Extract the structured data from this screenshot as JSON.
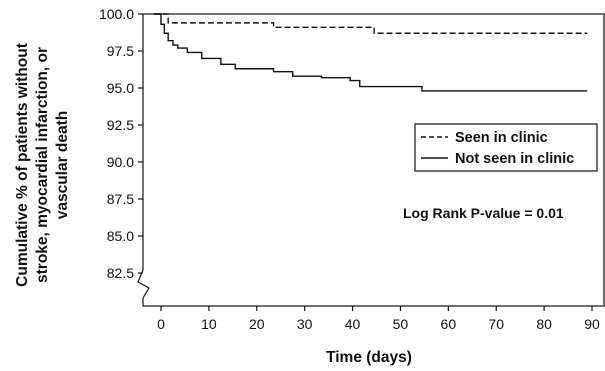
{
  "chart_data": {
    "type": "line",
    "title": "",
    "xlabel": "Time (days)",
    "ylabel_lines": [
      "Cumulative % of patients without",
      "stroke, myocardial infarction, or",
      "vascular death"
    ],
    "xlim": [
      -5,
      90
    ],
    "ylim": [
      80,
      100
    ],
    "x_ticks": [
      0,
      10,
      20,
      30,
      40,
      50,
      60,
      70,
      80,
      90
    ],
    "y_ticks": [
      82.5,
      85.0,
      87.5,
      90.0,
      92.5,
      95.0,
      97.5,
      100.0
    ],
    "y_tick_labels": [
      "82.5",
      "85.0",
      "87.5",
      "90.0",
      "92.5",
      "95.0",
      "97.5",
      "100.0"
    ],
    "y_axis_break": true,
    "legend_position": "middle-right",
    "annotation": "Log Rank P-value = 0.01",
    "series": [
      {
        "name": "Seen in clinic",
        "line_style": "dashed",
        "color": "#111111",
        "step_x": [
          -1.5,
          1.5,
          23.5,
          44.5,
          89
        ],
        "step_y": [
          100.0,
          99.4,
          99.1,
          98.7,
          98.7
        ]
      },
      {
        "name": "Not seen in clinic",
        "line_style": "solid",
        "color": "#111111",
        "step_x": [
          -1.5,
          0,
          0.7,
          1.5,
          2.5,
          3.5,
          5.5,
          8.5,
          12.5,
          15.5,
          23.5,
          27.5,
          33.5,
          39.5,
          41.5,
          54.5,
          89
        ],
        "step_y": [
          100.0,
          99.3,
          98.7,
          98.2,
          97.9,
          97.7,
          97.4,
          97.0,
          96.6,
          96.3,
          96.1,
          95.8,
          95.7,
          95.5,
          95.1,
          94.8,
          94.8
        ]
      }
    ]
  }
}
